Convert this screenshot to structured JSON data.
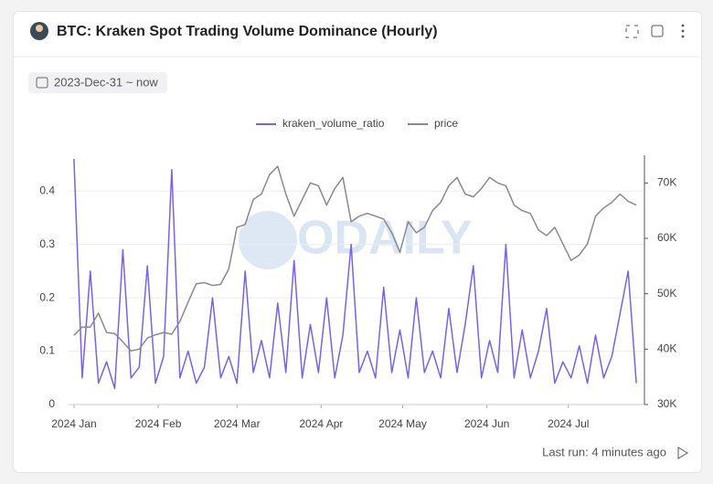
{
  "header": {
    "title": "BTC: Kraken Spot Trading Volume Dominance (Hourly)"
  },
  "filter": {
    "date_range": "2023-Dec-31 ~ now"
  },
  "footer": {
    "last_run": "Last run: 4 minutes ago"
  },
  "watermark": "ODAILY",
  "chart_data": {
    "type": "line",
    "x": [
      0,
      3,
      6,
      9,
      12,
      15,
      18,
      21,
      24,
      27,
      30,
      33,
      36,
      39,
      42,
      45,
      48,
      51,
      54,
      57,
      60,
      63,
      66,
      69,
      72,
      75,
      78,
      81,
      84,
      87,
      90,
      93,
      96,
      99,
      102,
      105,
      108,
      111,
      114,
      117,
      120,
      123,
      126,
      129,
      132,
      135,
      138,
      141,
      144,
      147,
      150,
      153,
      156,
      159,
      162,
      165,
      168,
      171,
      174,
      177,
      180,
      183,
      186,
      189,
      192,
      195,
      198,
      201,
      204,
      207
    ],
    "xlim": [
      -2,
      210
    ],
    "xticks": [
      {
        "value": 0,
        "label": "2024 Jan"
      },
      {
        "value": 31,
        "label": "2024 Feb"
      },
      {
        "value": 60,
        "label": "2024 Mar"
      },
      {
        "value": 91,
        "label": "2024 Apr"
      },
      {
        "value": 121,
        "label": "2024 May"
      },
      {
        "value": 152,
        "label": "2024 Jun"
      },
      {
        "value": 182,
        "label": "2024 Jul"
      }
    ],
    "ylim": [
      0,
      0.467
    ],
    "yticks": [
      0,
      0.1,
      0.2,
      0.3,
      0.4
    ],
    "y2lim": [
      30000,
      75000
    ],
    "y2ticks": [
      {
        "value": 30000,
        "label": "30K"
      },
      {
        "value": 40000,
        "label": "40K"
      },
      {
        "value": 50000,
        "label": "50K"
      },
      {
        "value": 60000,
        "label": "60K"
      },
      {
        "value": 70000,
        "label": "70K"
      }
    ],
    "grid": true,
    "series": [
      {
        "name": "kraken_volume_ratio",
        "color": "#7b61e8",
        "values": [
          0.46,
          0.05,
          0.25,
          0.04,
          0.08,
          0.03,
          0.29,
          0.05,
          0.07,
          0.26,
          0.04,
          0.09,
          0.44,
          0.05,
          0.1,
          0.04,
          0.07,
          0.2,
          0.05,
          0.09,
          0.04,
          0.25,
          0.06,
          0.12,
          0.05,
          0.19,
          0.06,
          0.27,
          0.05,
          0.15,
          0.06,
          0.2,
          0.05,
          0.13,
          0.3,
          0.06,
          0.1,
          0.05,
          0.22,
          0.06,
          0.14,
          0.05,
          0.2,
          0.06,
          0.1,
          0.05,
          0.18,
          0.06,
          0.15,
          0.26,
          0.05,
          0.12,
          0.06,
          0.3,
          0.05,
          0.14,
          0.05,
          0.1,
          0.18,
          0.04,
          0.08,
          0.05,
          0.11,
          0.04,
          0.13,
          0.05,
          0.09,
          0.17,
          0.25,
          0.04
        ]
      },
      {
        "name": "price",
        "color": "#8a8a8a",
        "axis": "y2",
        "values": [
          42500,
          44000,
          44000,
          46500,
          43000,
          42800,
          41300,
          39700,
          40000,
          42000,
          42600,
          43000,
          42700,
          45000,
          48500,
          51800,
          52000,
          51500,
          51700,
          54500,
          62000,
          62500,
          67000,
          68000,
          71500,
          73000,
          68000,
          64000,
          67000,
          70000,
          69500,
          66000,
          69000,
          71000,
          63000,
          64000,
          64500,
          64000,
          63500,
          61000,
          57500,
          63000,
          61000,
          62000,
          65000,
          66500,
          69500,
          71000,
          68000,
          67500,
          69000,
          71000,
          70000,
          69500,
          66000,
          65000,
          64500,
          61500,
          60500,
          62000,
          59000,
          56000,
          57000,
          59000,
          64000,
          65500,
          66500,
          68000,
          66700,
          66000
        ]
      }
    ]
  }
}
